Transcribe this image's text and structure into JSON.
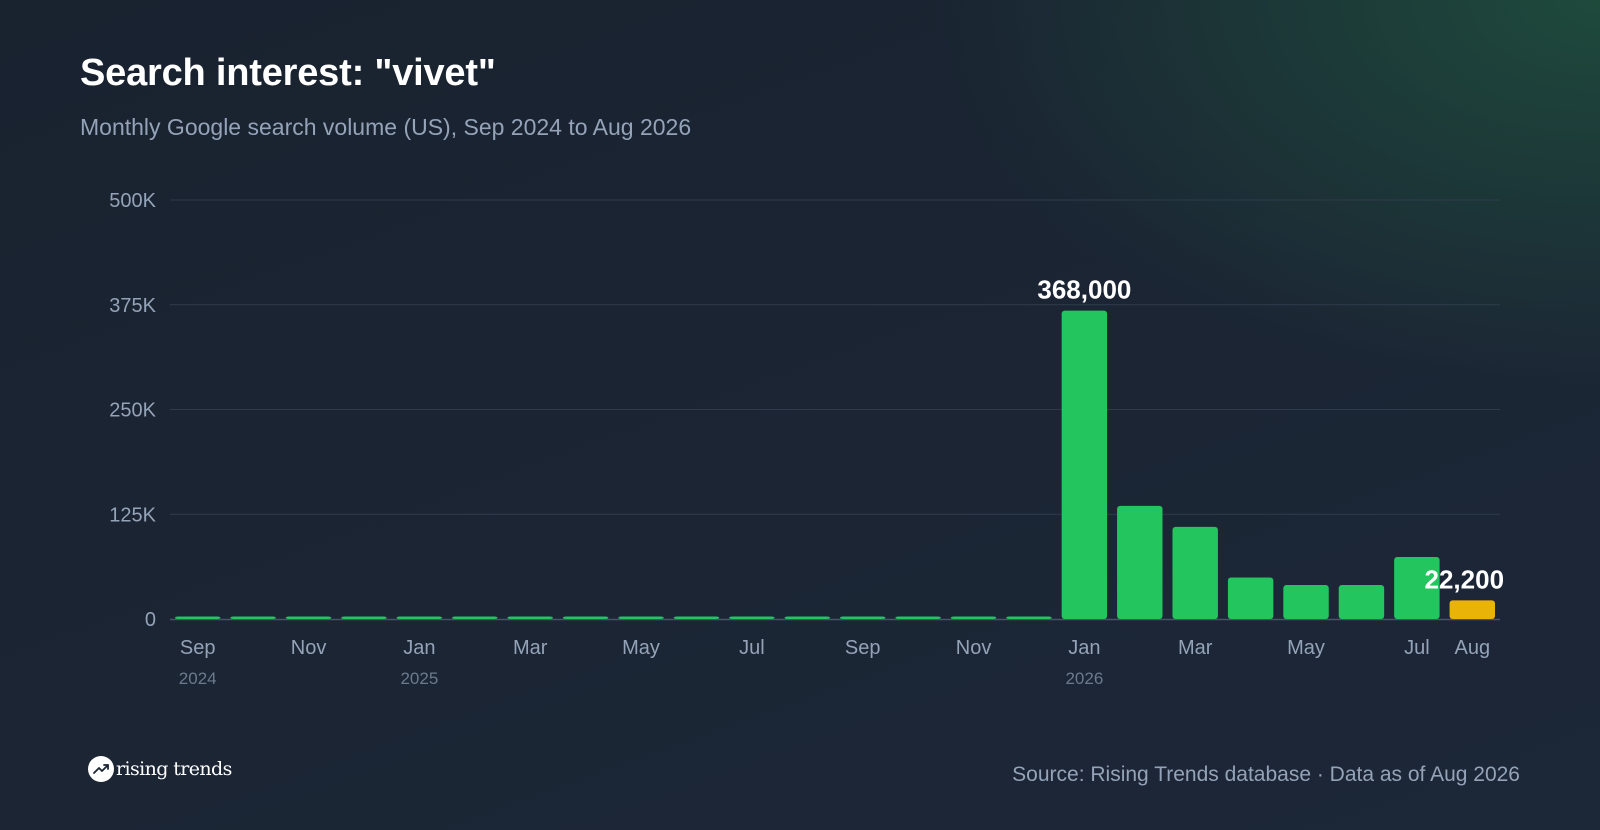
{
  "title": "Search interest: \"vivet\"",
  "subtitle": "Monthly Google search volume (US), Sep 2024 to Aug 2026",
  "source": "Source: Rising Trends database · Data as of Aug 2026",
  "brand": {
    "name": "rising trends",
    "icon": "trending-up-icon"
  },
  "colors": {
    "bar": "#22c55e",
    "highlight_bar": "#eab308",
    "grid": "#2f3b4c",
    "axis_text": "#94a3b8",
    "year_text": "#6b7a8c"
  },
  "chart_data": {
    "type": "bar",
    "categories": [
      "Sep 2024",
      "Oct 2024",
      "Nov 2024",
      "Dec 2024",
      "Jan 2025",
      "Feb 2025",
      "Mar 2025",
      "Apr 2025",
      "May 2025",
      "Jun 2025",
      "Jul 2025",
      "Aug 2025",
      "Sep 2025",
      "Oct 2025",
      "Nov 2025",
      "Dec 2025",
      "Jan 2026",
      "Feb 2026",
      "Mar 2026",
      "Apr 2026",
      "May 2026",
      "Jun 2026",
      "Jul 2026",
      "Aug 2026"
    ],
    "values": [
      1000,
      1000,
      1000,
      1000,
      1000,
      1000,
      1000,
      1000,
      1000,
      1000,
      1000,
      1000,
      1000,
      1000,
      1000,
      1000,
      368000,
      135000,
      110000,
      49500,
      40500,
      40500,
      74000,
      22200
    ],
    "highlight_index": 23,
    "data_labels": [
      {
        "index": 16,
        "text": "368,000"
      },
      {
        "index": 23,
        "text": "22,200"
      }
    ],
    "x_ticks": [
      {
        "index": 0,
        "label": "Sep",
        "year": "2024"
      },
      {
        "index": 2,
        "label": "Nov",
        "year": ""
      },
      {
        "index": 4,
        "label": "Jan",
        "year": "2025"
      },
      {
        "index": 6,
        "label": "Mar",
        "year": ""
      },
      {
        "index": 8,
        "label": "May",
        "year": ""
      },
      {
        "index": 10,
        "label": "Jul",
        "year": ""
      },
      {
        "index": 12,
        "label": "Sep",
        "year": ""
      },
      {
        "index": 14,
        "label": "Nov",
        "year": ""
      },
      {
        "index": 16,
        "label": "Jan",
        "year": "2026"
      },
      {
        "index": 18,
        "label": "Mar",
        "year": ""
      },
      {
        "index": 20,
        "label": "May",
        "year": ""
      },
      {
        "index": 22,
        "label": "Jul",
        "year": ""
      },
      {
        "index": 23,
        "label": "Aug",
        "year": ""
      }
    ],
    "y_ticks": [
      {
        "value": 0,
        "label": "0"
      },
      {
        "value": 125000,
        "label": "125K"
      },
      {
        "value": 250000,
        "label": "250K"
      },
      {
        "value": 375000,
        "label": "375K"
      },
      {
        "value": 500000,
        "label": "500K"
      }
    ],
    "ylim": [
      0,
      500000
    ],
    "grid": true,
    "legend": "none"
  }
}
